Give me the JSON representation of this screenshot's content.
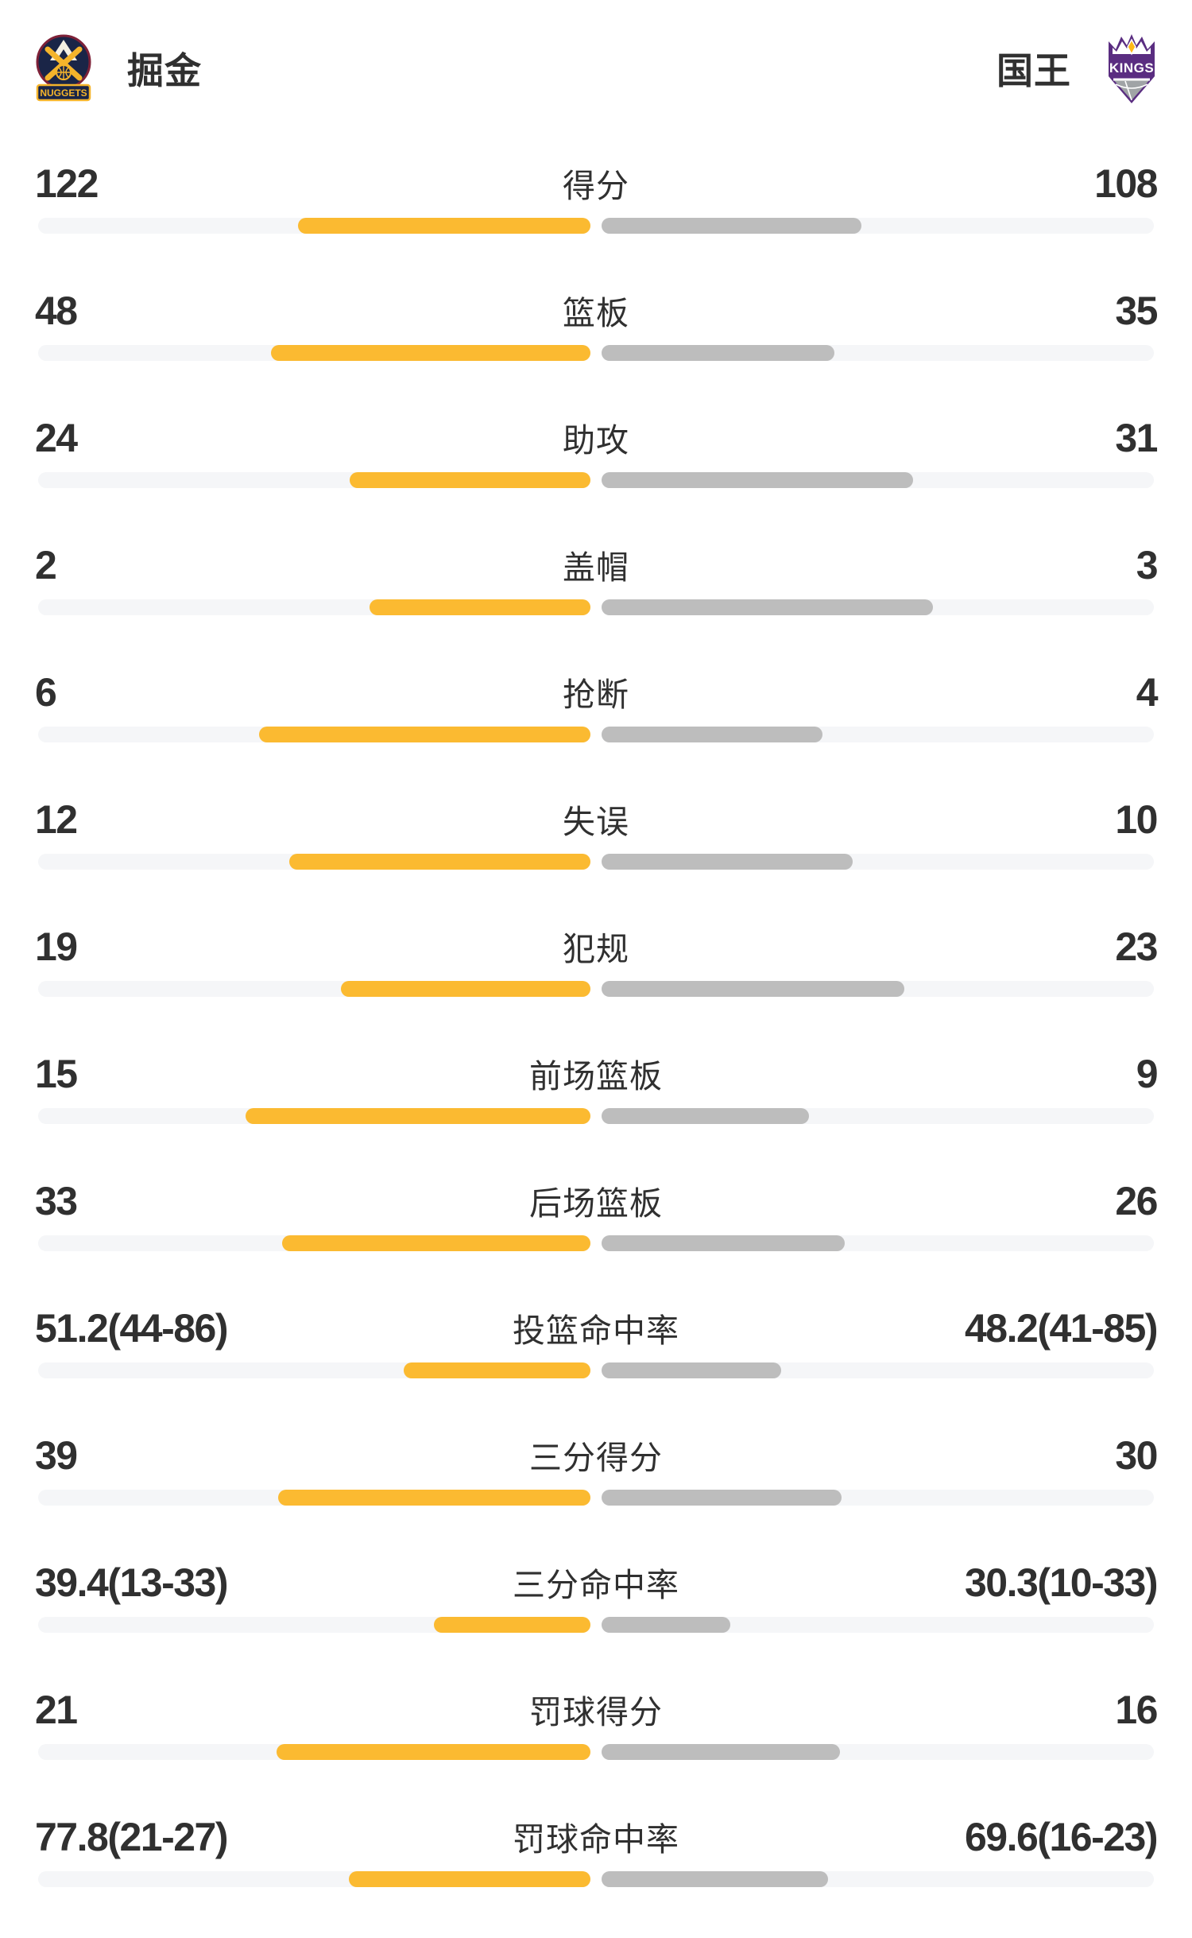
{
  "header": {
    "left_team": {
      "name": "掘金",
      "logo_text": "NUGGETS"
    },
    "right_team": {
      "name": "国王",
      "logo_text": "KINGS"
    }
  },
  "colors": {
    "bar_left": "#FBBA31",
    "bar_right": "#BDBDBD",
    "bar_track": "#F5F6F8",
    "text_main": "#303030",
    "nuggets_navy": "#1A2547",
    "nuggets_gold": "#F5B42B",
    "nuggets_maroon": "#7E2138",
    "kings_purple": "#5A2D81",
    "kings_gray": "#A0A4A6",
    "kings_gold": "#FFB915"
  },
  "chart_data": {
    "type": "bar",
    "orientation": "horizontal-paired",
    "series": [
      {
        "name": "掘金",
        "color": "#FBBA31"
      },
      {
        "name": "国王",
        "color": "#BDBDBD"
      }
    ],
    "categories": [
      "得分",
      "篮板",
      "助攻",
      "盖帽",
      "抢断",
      "失误",
      "犯规",
      "前场篮板",
      "后场篮板",
      "投篮命中率",
      "三分得分",
      "三分命中率",
      "罚球得分",
      "罚球命中率"
    ],
    "rows": [
      {
        "label": "得分",
        "left": "122",
        "right": "108",
        "left_fill": 0.53,
        "right_fill": 0.47
      },
      {
        "label": "篮板",
        "left": "48",
        "right": "35",
        "left_fill": 0.578,
        "right_fill": 0.422
      },
      {
        "label": "助攻",
        "left": "24",
        "right": "31",
        "left_fill": 0.436,
        "right_fill": 0.564
      },
      {
        "label": "盖帽",
        "left": "2",
        "right": "3",
        "left_fill": 0.4,
        "right_fill": 0.6
      },
      {
        "label": "抢断",
        "left": "6",
        "right": "4",
        "left_fill": 0.6,
        "right_fill": 0.4
      },
      {
        "label": "失误",
        "left": "12",
        "right": "10",
        "left_fill": 0.545,
        "right_fill": 0.455
      },
      {
        "label": "犯规",
        "left": "19",
        "right": "23",
        "left_fill": 0.452,
        "right_fill": 0.548
      },
      {
        "label": "前场篮板",
        "left": "15",
        "right": "9",
        "left_fill": 0.625,
        "right_fill": 0.375
      },
      {
        "label": "后场篮板",
        "left": "33",
        "right": "26",
        "left_fill": 0.559,
        "right_fill": 0.441
      },
      {
        "label": "投篮命中率",
        "left": "51.2(44-86)",
        "right": "48.2(41-85)",
        "left_fill": 0.338,
        "right_fill": 0.325
      },
      {
        "label": "三分得分",
        "left": "39",
        "right": "30",
        "left_fill": 0.565,
        "right_fill": 0.435
      },
      {
        "label": "三分命中率",
        "left": "39.4(13-33)",
        "right": "30.3(10-33)",
        "left_fill": 0.283,
        "right_fill": 0.233
      },
      {
        "label": "罚球得分",
        "left": "21",
        "right": "16",
        "left_fill": 0.568,
        "right_fill": 0.432
      },
      {
        "label": "罚球命中率",
        "left": "77.8(21-27)",
        "right": "69.6(16-23)",
        "left_fill": 0.438,
        "right_fill": 0.41
      }
    ]
  }
}
